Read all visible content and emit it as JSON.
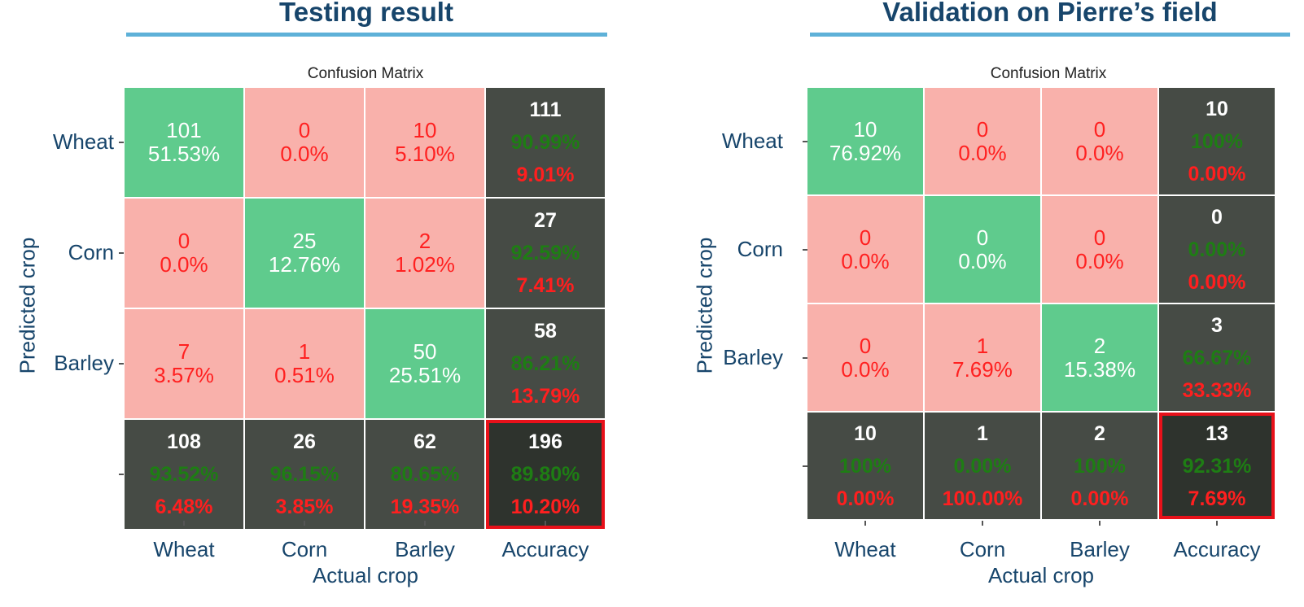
{
  "chart_data": [
    {
      "type": "heatmap",
      "panel_title": "Testing result",
      "title": "Confusion Matrix",
      "xlabel": "Actual crop",
      "ylabel": "Predicted crop",
      "x_categories": [
        "Wheat",
        "Corn",
        "Barley",
        "Accuracy"
      ],
      "y_categories": [
        "Wheat",
        "Corn",
        "Barley",
        ""
      ],
      "cells": [
        [
          {
            "value": "101",
            "percent": "51.53%"
          },
          {
            "value": "0",
            "percent": "0.0%"
          },
          {
            "value": "10",
            "percent": "5.10%"
          }
        ],
        [
          {
            "value": "0",
            "percent": "0.0%"
          },
          {
            "value": "25",
            "percent": "12.76%"
          },
          {
            "value": "2",
            "percent": "1.02%"
          }
        ],
        [
          {
            "value": "7",
            "percent": "3.57%"
          },
          {
            "value": "1",
            "percent": "0.51%"
          },
          {
            "value": "50",
            "percent": "25.51%"
          }
        ]
      ],
      "row_totals": [
        {
          "count": "111",
          "correct": "90.99%",
          "error": "9.01%"
        },
        {
          "count": "27",
          "correct": "92.59%",
          "error": "7.41%"
        },
        {
          "count": "58",
          "correct": "86.21%",
          "error": "13.79%"
        }
      ],
      "col_totals": [
        {
          "count": "108",
          "correct": "93.52%",
          "error": "6.48%"
        },
        {
          "count": "26",
          "correct": "96.15%",
          "error": "3.85%"
        },
        {
          "count": "62",
          "correct": "80.65%",
          "error": "19.35%"
        }
      ],
      "overall": {
        "count": "196",
        "correct": "89.80%",
        "error": "10.20%"
      }
    },
    {
      "type": "heatmap",
      "panel_title": "Validation on Pierre’s field",
      "title": "Confusion Matrix",
      "xlabel": "Actual crop",
      "ylabel": "Predicted crop",
      "x_categories": [
        "Wheat",
        "Corn",
        "Barley",
        "Accuracy"
      ],
      "y_categories": [
        "Wheat",
        "Corn",
        "Barley",
        ""
      ],
      "cells": [
        [
          {
            "value": "10",
            "percent": "76.92%"
          },
          {
            "value": "0",
            "percent": "0.0%"
          },
          {
            "value": "0",
            "percent": "0.0%"
          }
        ],
        [
          {
            "value": "0",
            "percent": "0.0%"
          },
          {
            "value": "0",
            "percent": "0.0%"
          },
          {
            "value": "0",
            "percent": "0.0%"
          }
        ],
        [
          {
            "value": "0",
            "percent": "0.0%"
          },
          {
            "value": "1",
            "percent": "7.69%"
          },
          {
            "value": "2",
            "percent": "15.38%"
          }
        ]
      ],
      "row_totals": [
        {
          "count": "10",
          "correct": "100%",
          "error": "0.00%"
        },
        {
          "count": "0",
          "correct": "0.00%",
          "error": "0.00%"
        },
        {
          "count": "3",
          "correct": "66.67%",
          "error": "33.33%"
        }
      ],
      "col_totals": [
        {
          "count": "10",
          "correct": "100%",
          "error": "0.00%"
        },
        {
          "count": "1",
          "correct": "0.00%",
          "error": "100.00%"
        },
        {
          "count": "2",
          "correct": "100%",
          "error": "0.00%"
        }
      ],
      "overall": {
        "count": "13",
        "correct": "92.31%",
        "error": "7.69%"
      }
    }
  ],
  "colors": {
    "title": "#17456b",
    "title_rule": "#5eb1d8",
    "diagonal": "#5fcb8d",
    "off_diagonal": "#f9b1ab",
    "off_text": "#ff2020",
    "total_bg": "#464b45",
    "overall_bg": "#2e332d",
    "correct_text": "#1e7d14",
    "error_text": "#ff1f1f",
    "highlight_border": "#e8111a"
  }
}
